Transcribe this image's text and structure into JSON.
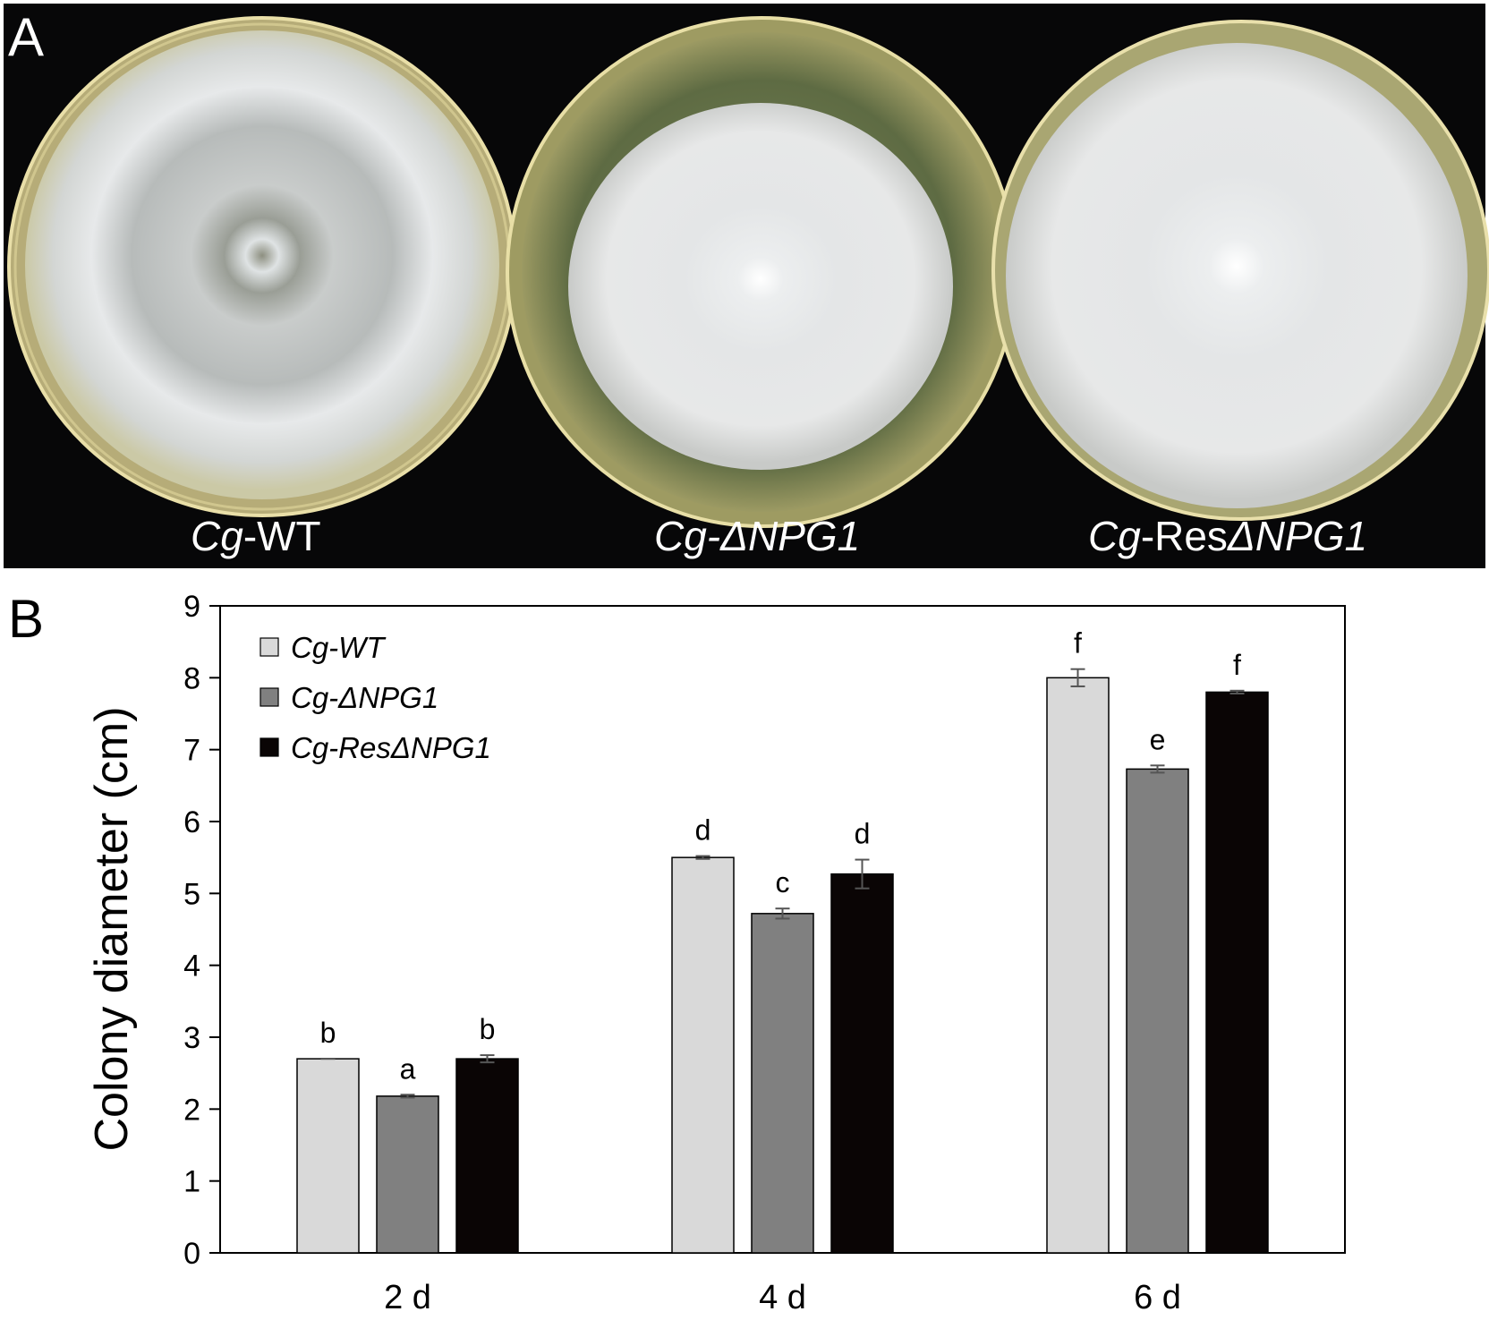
{
  "panel_a": {
    "letter": "A",
    "plates": [
      {
        "prefix": "Cg",
        "suffix": "-WT",
        "suffix_italic": false
      },
      {
        "prefix": "Cg-",
        "suffix": "ΔNPG1",
        "suffix_italic": true
      },
      {
        "prefix": "Cg",
        "suffix": "-Res",
        "suffix2": "ΔNPG1",
        "suffix_italic": false
      }
    ],
    "plate_text": [
      "Cg-WT",
      "Cg-ΔNPG1",
      "Cg-ResΔNPG1"
    ]
  },
  "panel_b": {
    "letter": "B"
  },
  "chart_data": {
    "type": "bar",
    "categories": [
      "2 d",
      "4 d",
      "6 d"
    ],
    "ylabel": "Colony diameter (cm)",
    "ylim": [
      0,
      9
    ],
    "yticks": [
      0,
      1,
      2,
      3,
      4,
      5,
      6,
      7,
      8,
      9
    ],
    "legend_position": "top-left",
    "grid": false,
    "series": [
      {
        "name": "Cg-WT",
        "color": "#d9d9d9",
        "values": [
          2.7,
          5.5,
          8.0
        ],
        "errors": [
          0.0,
          0.02,
          0.12
        ],
        "letters": [
          "b",
          "d",
          "f"
        ]
      },
      {
        "name": "Cg-ΔNPG1",
        "color": "#808080",
        "values": [
          2.18,
          4.72,
          6.73
        ],
        "errors": [
          0.02,
          0.07,
          0.05
        ],
        "letters": [
          "a",
          "c",
          "e"
        ]
      },
      {
        "name": "Cg-ResΔNPG1",
        "color": "#0a0505",
        "values": [
          2.7,
          5.27,
          7.8
        ],
        "errors": [
          0.05,
          0.2,
          0.02
        ],
        "letters": [
          "b",
          "d",
          "f"
        ]
      }
    ]
  }
}
